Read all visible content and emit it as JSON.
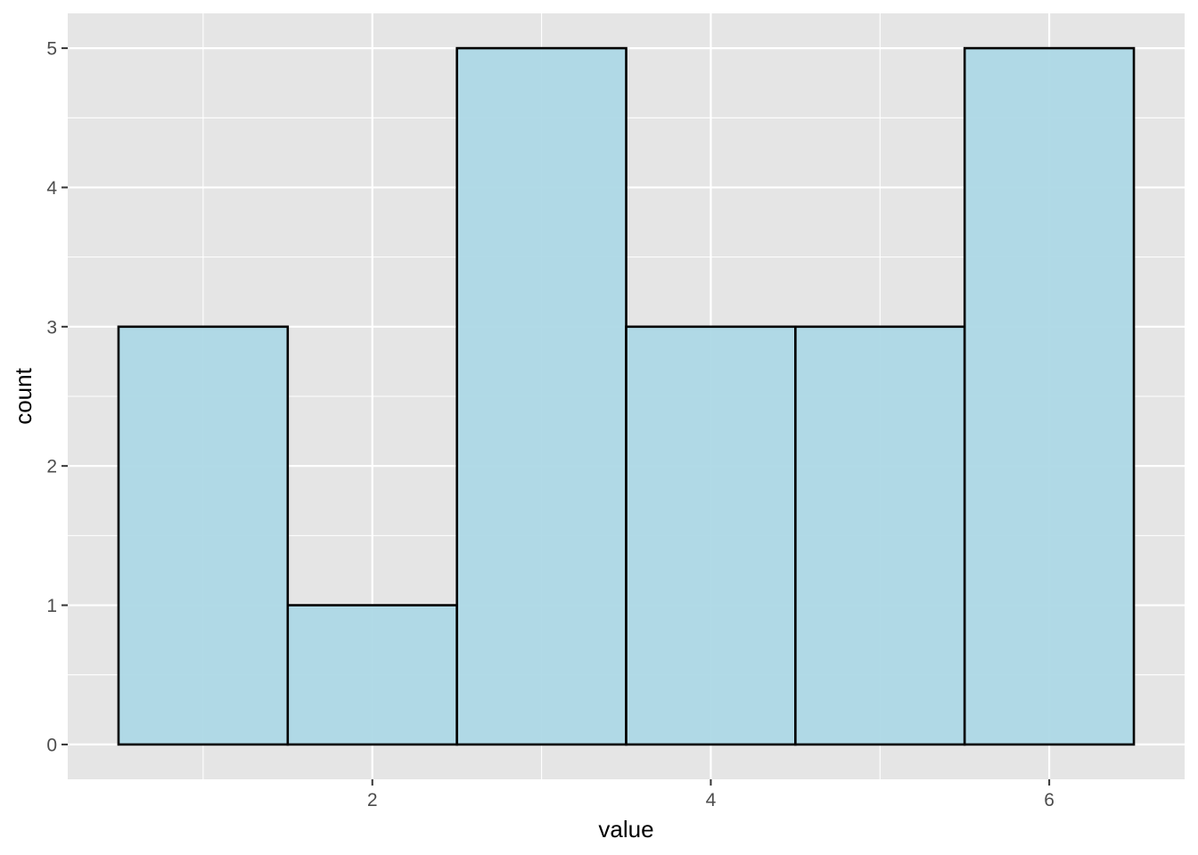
{
  "chart_data": {
    "type": "bar",
    "subtype": "histogram",
    "bins": [
      {
        "x_start": 0.5,
        "x_end": 1.5,
        "count": 3
      },
      {
        "x_start": 1.5,
        "x_end": 2.5,
        "count": 1
      },
      {
        "x_start": 2.5,
        "x_end": 3.5,
        "count": 5
      },
      {
        "x_start": 3.5,
        "x_end": 4.5,
        "count": 3
      },
      {
        "x_start": 4.5,
        "x_end": 5.5,
        "count": 3
      },
      {
        "x_start": 5.5,
        "x_end": 6.5,
        "count": 5
      }
    ],
    "xlabel": "value",
    "ylabel": "count",
    "xlim": [
      0.2,
      6.8
    ],
    "ylim": [
      -0.25,
      5.25
    ],
    "x_ticks": [
      2,
      4,
      6
    ],
    "x_tick_labels": [
      "2",
      "4",
      "6"
    ],
    "y_ticks": [
      0,
      1,
      2,
      3,
      4,
      5
    ],
    "y_tick_labels": [
      "0",
      "1",
      "2",
      "3",
      "4",
      "5"
    ],
    "grid": true,
    "legend": "none",
    "colors": {
      "panel_background": "#e5e5e5",
      "grid": "#ffffff",
      "bar_fill": "#add8e6",
      "bar_outline": "#000000",
      "tick_text": "#4d4d4d",
      "tick_mark": "#333333"
    }
  }
}
